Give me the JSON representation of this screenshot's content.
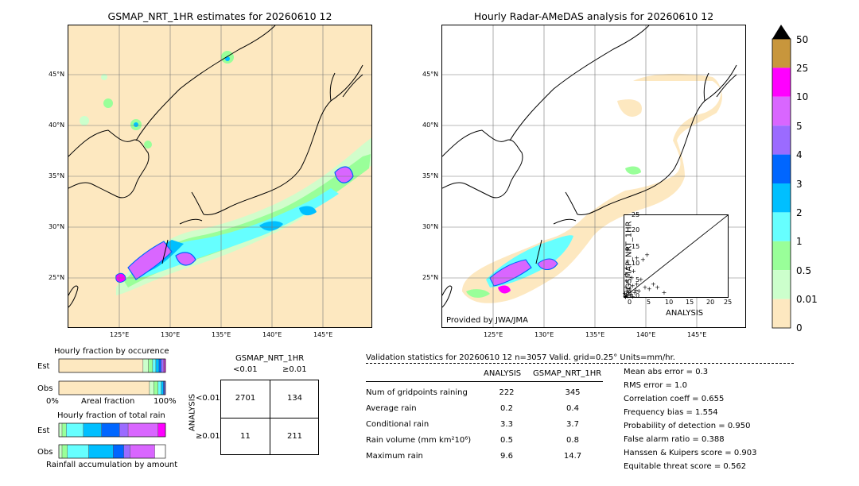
{
  "map_left": {
    "title": "GSMAP_NRT_1HR estimates for 20260610 12",
    "lat_ticks": [
      "45°N",
      "40°N",
      "35°N",
      "30°N",
      "25°N"
    ],
    "lon_ticks": [
      "125°E",
      "130°E",
      "135°E",
      "140°E",
      "145°E"
    ]
  },
  "map_right": {
    "title": "Hourly Radar-AMeDAS analysis for 20260610 12",
    "lat_ticks": [
      "45°N",
      "40°N",
      "35°N",
      "30°N",
      "25°N"
    ],
    "lon_ticks": [
      "125°E",
      "130°E",
      "135°E",
      "140°E",
      "145°E"
    ],
    "credit": "Provided by JWA/JMA"
  },
  "colorbar": {
    "labels": [
      "50",
      "25",
      "10",
      "5",
      "4",
      "3",
      "2",
      "1",
      "0.5",
      "0.01",
      "0"
    ],
    "colors": [
      "#c8963c",
      "#ff00ff",
      "#d966ff",
      "#9b6bff",
      "#0066ff",
      "#00bfff",
      "#66ffff",
      "#99ff99",
      "#ccffcc",
      "#fde8c0"
    ]
  },
  "scatter": {
    "ylabel": "GSMAP_NRT_1HR",
    "xlabel": "ANALYSIS",
    "ticks": [
      "0",
      "5",
      "10",
      "15",
      "20",
      "25"
    ]
  },
  "fraction_occurrence": {
    "title": "Hourly fraction by occurence",
    "est_label": "Est",
    "obs_label": "Obs",
    "axis_left": "0%",
    "axis_mid": "Areal fraction",
    "axis_right": "100%"
  },
  "fraction_total": {
    "title": "Hourly fraction of total rain",
    "est_label": "Est",
    "obs_label": "Obs",
    "caption": "Rainfall accumulation by amount"
  },
  "contingency": {
    "title": "GSMAP_NRT_1HR",
    "col_lt": "<0.01",
    "col_ge": "≥0.01",
    "row_axis": "ANALYSIS",
    "row_lt": "<0.01",
    "row_ge": "≥0.01",
    "cells": [
      "2701",
      "134",
      "11",
      "211"
    ]
  },
  "validation": {
    "header": "Validation statistics for 20260610 12  n=3057 Valid. grid=0.25° Units=mm/hr.",
    "col_analysis": "ANALYSIS",
    "col_gsmap": "GSMAP_NRT_1HR",
    "rows": [
      {
        "label": "Num of gridpoints raining",
        "analysis": "222",
        "gsmap": "345"
      },
      {
        "label": "Average rain",
        "analysis": "0.2",
        "gsmap": "0.4"
      },
      {
        "label": "Conditional rain",
        "analysis": "3.3",
        "gsmap": "3.7"
      },
      {
        "label": "Rain volume (mm km²10⁶)",
        "analysis": "0.5",
        "gsmap": "0.8"
      },
      {
        "label": "Maximum rain",
        "analysis": "9.6",
        "gsmap": "14.7"
      }
    ],
    "scores": [
      "Mean abs error =    0.3",
      "RMS error =    1.0",
      "Correlation coeff =  0.655",
      "Frequency bias =  1.554",
      "Probability of detection =  0.950",
      "False alarm ratio =  0.388",
      "Hanssen & Kuipers score =  0.903",
      "Equitable threat score =  0.562"
    ]
  },
  "chart_data": [
    {
      "type": "scatter",
      "xlabel": "ANALYSIS",
      "ylabel": "GSMAP_NRT_1HR",
      "xlim": [
        0,
        25
      ],
      "ylim": [
        0,
        25
      ],
      "points": [
        [
          0.2,
          0.3
        ],
        [
          0.5,
          0.8
        ],
        [
          0.8,
          0.4
        ],
        [
          1,
          1.5
        ],
        [
          1.2,
          2.5
        ],
        [
          0.4,
          3
        ],
        [
          0.6,
          5
        ],
        [
          0.3,
          7
        ],
        [
          0.5,
          9
        ],
        [
          0.8,
          11
        ],
        [
          1.5,
          2
        ],
        [
          2,
          3.5
        ],
        [
          2.5,
          1.5
        ],
        [
          3,
          4
        ],
        [
          3.5,
          2
        ],
        [
          4,
          5.5
        ],
        [
          5,
          3
        ],
        [
          6,
          2.5
        ],
        [
          7,
          4
        ],
        [
          8,
          3
        ],
        [
          9.6,
          1.5
        ],
        [
          0.7,
          14.7
        ],
        [
          1.8,
          6
        ],
        [
          2.2,
          8
        ],
        [
          3,
          12
        ],
        [
          4.5,
          11.5
        ],
        [
          5.5,
          13
        ],
        [
          1,
          4
        ],
        [
          1.4,
          0.6
        ],
        [
          2,
          0.3
        ],
        [
          0.9,
          2
        ],
        [
          0.1,
          1.2
        ],
        [
          1.6,
          1
        ],
        [
          2.8,
          2.2
        ],
        [
          0.3,
          0.1
        ],
        [
          0.6,
          1.8
        ]
      ]
    },
    {
      "type": "bar",
      "title": "Hourly fraction by occurence",
      "series": [
        {
          "name": "Est",
          "values": [
            0.79,
            0.05,
            0.04,
            0.03,
            0.03,
            0.02,
            0.02,
            0.01,
            0.01
          ]
        },
        {
          "name": "Obs",
          "values": [
            0.85,
            0.04,
            0.04,
            0.03,
            0.02,
            0.01,
            0.01
          ]
        }
      ]
    },
    {
      "type": "bar",
      "title": "Hourly fraction of total rain",
      "series": [
        {
          "name": "Est",
          "values": [
            0.03,
            0.04,
            0.16,
            0.17,
            0.17,
            0.08,
            0.28,
            0.07
          ]
        },
        {
          "name": "Obs",
          "values": [
            0.03,
            0.05,
            0.2,
            0.23,
            0.1,
            0.06,
            0.23
          ]
        }
      ]
    }
  ]
}
